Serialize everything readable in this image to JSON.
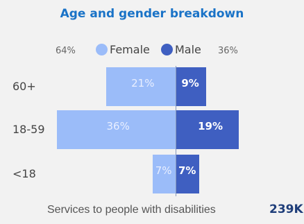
{
  "colors": {
    "title": "#1a73c7",
    "female": "#9bbcf9",
    "male": "#3f5fc1",
    "background": "#f2f2f2"
  },
  "legend": {
    "female_pct": "64%",
    "female_label": "Female",
    "male_label": "Male",
    "male_pct": "36%"
  },
  "chart_data": {
    "type": "bar",
    "title": "Age and gender breakdown",
    "orientation": "horizontal-butterfly",
    "categories": [
      "60+",
      "18-59",
      "<18"
    ],
    "series": [
      {
        "name": "Female",
        "values": [
          21,
          36,
          7
        ]
      },
      {
        "name": "Male",
        "values": [
          9,
          19,
          7
        ]
      }
    ],
    "value_labels": {
      "Female": [
        "21%",
        "36%",
        "7%"
      ],
      "Male": [
        "9%",
        "19%",
        "7%"
      ]
    },
    "grid": false,
    "legend_position": "top"
  },
  "footer": {
    "label": "Services to people with disabilities",
    "value": "239K"
  }
}
